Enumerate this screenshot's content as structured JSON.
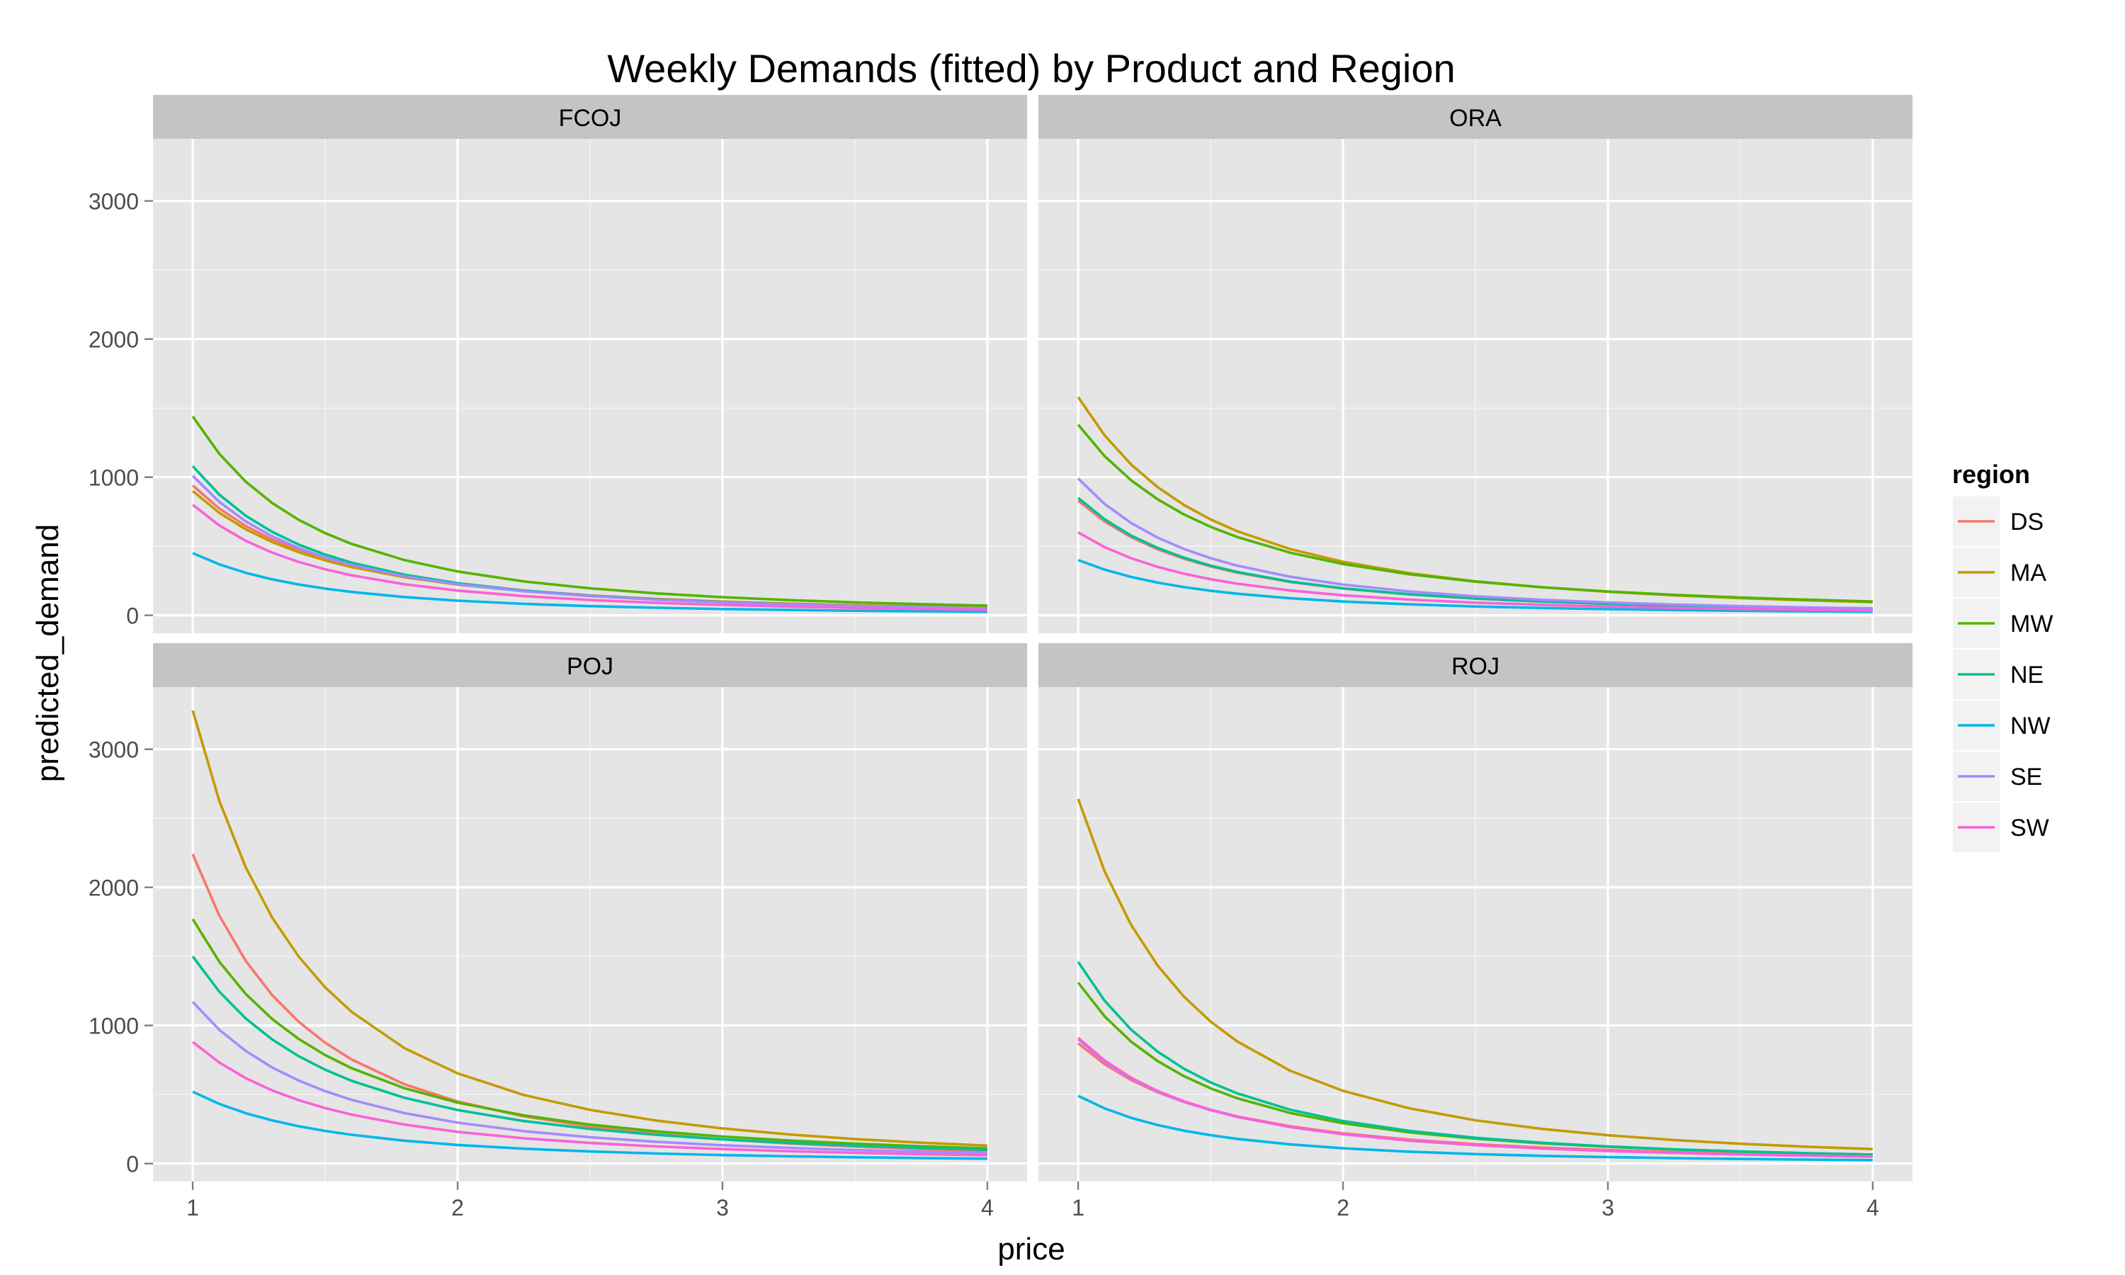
{
  "chart_data": {
    "type": "line",
    "title": "Weekly Demands (fitted) by Product and Region",
    "xlabel": "price",
    "ylabel": "predicted_demand",
    "xlim": [
      0.85,
      4.15
    ],
    "ylim": [
      -130,
      3450
    ],
    "x_ticks": [
      1,
      2,
      3,
      4
    ],
    "y_ticks": [
      0,
      1000,
      2000,
      3000
    ],
    "x_tick_labels": [
      "1",
      "2",
      "3",
      "4"
    ],
    "y_tick_labels": [
      "0",
      "1000",
      "2000",
      "3000"
    ],
    "grid": true,
    "facet_layout": "2x2",
    "legend": {
      "title": "region",
      "position": "right",
      "entries": [
        {
          "name": "DS",
          "color": "#F8766D"
        },
        {
          "name": "MA",
          "color": "#C49A00"
        },
        {
          "name": "MW",
          "color": "#53B400"
        },
        {
          "name": "NE",
          "color": "#00C094"
        },
        {
          "name": "NW",
          "color": "#00B6EB"
        },
        {
          "name": "SE",
          "color": "#A58AFF"
        },
        {
          "name": "SW",
          "color": "#FB61D7"
        }
      ]
    },
    "x": [
      1.0,
      1.1,
      1.2,
      1.3,
      1.4,
      1.5,
      1.6,
      1.8,
      2.0,
      2.25,
      2.5,
      2.75,
      3.0,
      3.25,
      3.5,
      3.75,
      4.0
    ],
    "panels": [
      {
        "label": "FCOJ",
        "series": [
          {
            "name": "DS",
            "start": 940,
            "end": 55
          },
          {
            "name": "MA",
            "start": 900,
            "end": 55
          },
          {
            "name": "MW",
            "start": 1440,
            "end": 70
          },
          {
            "name": "NE",
            "start": 1080,
            "end": 50
          },
          {
            "name": "NW",
            "start": 450,
            "end": 25
          },
          {
            "name": "SE",
            "start": 1010,
            "end": 50
          },
          {
            "name": "SW",
            "start": 800,
            "end": 40
          }
        ]
      },
      {
        "label": "ORA",
        "series": [
          {
            "name": "DS",
            "start": 830,
            "end": 45
          },
          {
            "name": "MA",
            "start": 1580,
            "end": 95
          },
          {
            "name": "MW",
            "start": 1380,
            "end": 100
          },
          {
            "name": "NE",
            "start": 850,
            "end": 45
          },
          {
            "name": "NW",
            "start": 400,
            "end": 25
          },
          {
            "name": "SE",
            "start": 990,
            "end": 50
          },
          {
            "name": "SW",
            "start": 600,
            "end": 35
          }
        ]
      },
      {
        "label": "POJ",
        "series": [
          {
            "name": "DS",
            "start": 2240,
            "end": 90
          },
          {
            "name": "MA",
            "start": 3280,
            "end": 130
          },
          {
            "name": "MW",
            "start": 1770,
            "end": 110
          },
          {
            "name": "NE",
            "start": 1500,
            "end": 100
          },
          {
            "name": "NW",
            "start": 520,
            "end": 35
          },
          {
            "name": "SE",
            "start": 1170,
            "end": 75
          },
          {
            "name": "SW",
            "start": 880,
            "end": 60
          }
        ]
      },
      {
        "label": "ROJ",
        "series": [
          {
            "name": "DS",
            "start": 870,
            "end": 55
          },
          {
            "name": "MA",
            "start": 2640,
            "end": 105
          },
          {
            "name": "MW",
            "start": 1310,
            "end": 65
          },
          {
            "name": "NE",
            "start": 1460,
            "end": 65
          },
          {
            "name": "NW",
            "start": 490,
            "end": 25
          },
          {
            "name": "SE",
            "start": 900,
            "end": 50
          },
          {
            "name": "SW",
            "start": 910,
            "end": 50
          }
        ]
      }
    ]
  }
}
